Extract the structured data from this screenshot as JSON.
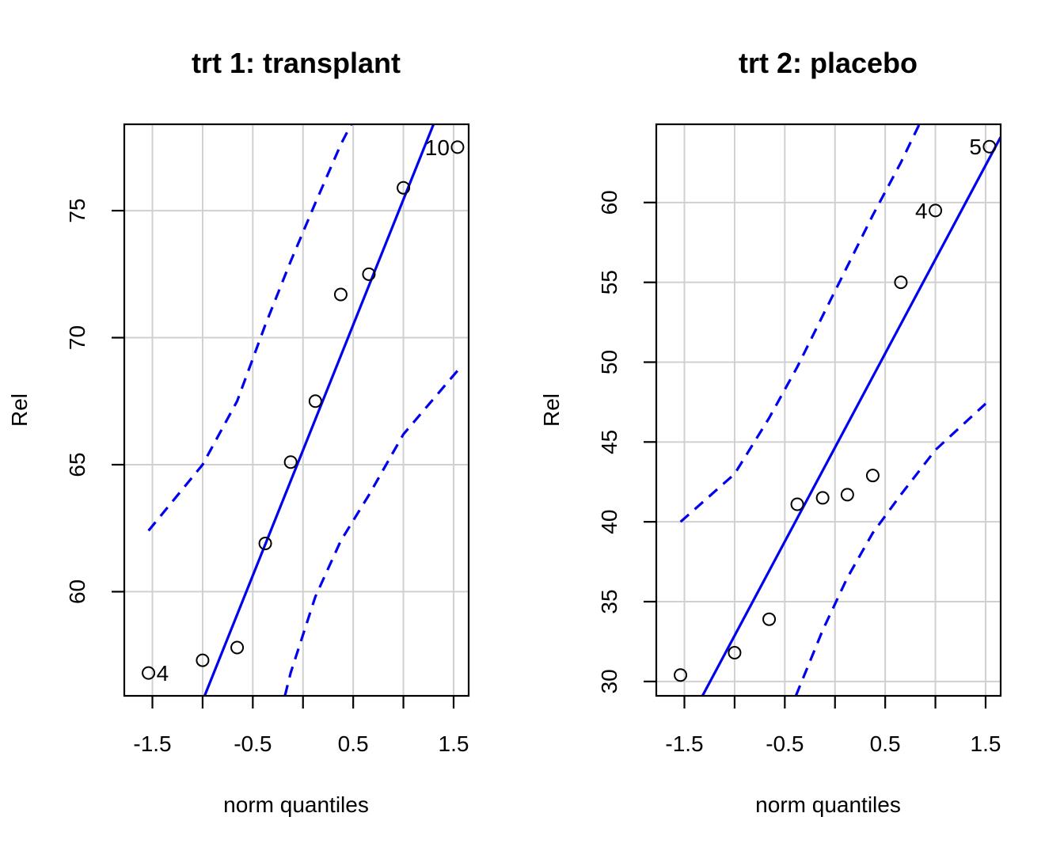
{
  "chart_data": [
    {
      "type": "scatter",
      "title": "trt 1: transplant",
      "xlabel": "norm quantiles",
      "ylabel": "Rel",
      "xlim": [
        -1.78,
        1.65
      ],
      "ylim": [
        55.9,
        78.4
      ],
      "xticks": [
        -1.5,
        -1.0,
        -0.5,
        0.0,
        0.5,
        1.0,
        1.5
      ],
      "xtick_labels": [
        "-1.5",
        "",
        "-0.5",
        "",
        "0.5",
        "",
        "1.5"
      ],
      "yticks": [
        60,
        65,
        70,
        75
      ],
      "ytick_labels": [
        "60",
        "65",
        "70",
        "75"
      ],
      "grid": true,
      "points": {
        "x": [
          -1.539,
          -1.0,
          -0.656,
          -0.376,
          -0.123,
          0.123,
          0.376,
          0.656,
          1.0,
          1.539
        ],
        "y": [
          56.8,
          57.3,
          57.8,
          61.9,
          65.1,
          67.5,
          71.7,
          72.5,
          75.9,
          77.5
        ]
      },
      "point_labels": [
        {
          "index": 0,
          "text": "4",
          "side": "right"
        },
        {
          "index": 9,
          "text": "10",
          "side": "left"
        }
      ],
      "reference_line": {
        "x": [
          -0.98,
          1.3
        ],
        "y": [
          55.9,
          78.4
        ]
      },
      "envelope_upper": {
        "x": [
          -1.539,
          -1.0,
          -0.656,
          -0.376,
          -0.123,
          0.123,
          0.376,
          0.48
        ],
        "y": [
          62.4,
          65.0,
          67.5,
          70.5,
          73.0,
          75.3,
          77.6,
          78.4
        ]
      },
      "envelope_lower": {
        "x": [
          -0.18,
          -0.123,
          0.123,
          0.376,
          0.656,
          1.0,
          1.539
        ],
        "y": [
          55.9,
          56.8,
          59.8,
          62.0,
          63.8,
          66.2,
          68.7
        ]
      },
      "colors": {
        "line": "#0000ee",
        "points": "#000000"
      }
    },
    {
      "type": "scatter",
      "title": "trt 2: placebo",
      "xlabel": "norm quantiles",
      "ylabel": "Rel",
      "xlim": [
        -1.78,
        1.65
      ],
      "ylim": [
        29.1,
        64.9
      ],
      "xticks": [
        -1.5,
        -1.0,
        -0.5,
        0.0,
        0.5,
        1.0,
        1.5
      ],
      "xtick_labels": [
        "-1.5",
        "",
        "-0.5",
        "",
        "0.5",
        "",
        "1.5"
      ],
      "yticks": [
        30,
        35,
        40,
        45,
        50,
        55,
        60
      ],
      "ytick_labels": [
        "30",
        "35",
        "40",
        "45",
        "50",
        "55",
        "60"
      ],
      "grid": true,
      "points": {
        "x": [
          -1.539,
          -1.0,
          -0.656,
          -0.376,
          -0.123,
          0.123,
          0.376,
          0.656,
          1.0,
          1.539
        ],
        "y": [
          30.4,
          31.8,
          33.9,
          41.1,
          41.5,
          41.7,
          42.9,
          55.0,
          59.5,
          63.5
        ]
      },
      "point_labels": [
        {
          "index": 8,
          "text": "4",
          "side": "left"
        },
        {
          "index": 9,
          "text": "5",
          "side": "left"
        }
      ],
      "reference_line": {
        "x": [
          -1.32,
          1.65
        ],
        "y": [
          29.1,
          64.1
        ]
      },
      "envelope_upper": {
        "x": [
          -1.539,
          -1.0,
          -0.656,
          -0.376,
          -0.123,
          0.123,
          0.376,
          0.656,
          0.84
        ],
        "y": [
          40.0,
          43.0,
          46.5,
          49.7,
          52.9,
          56.0,
          59.2,
          62.5,
          64.9
        ]
      },
      "envelope_lower": {
        "x": [
          -0.39,
          -0.123,
          0.123,
          0.376,
          0.656,
          1.0,
          1.5
        ],
        "y": [
          29.1,
          33.2,
          36.5,
          39.3,
          41.7,
          44.5,
          47.4
        ]
      },
      "colors": {
        "line": "#0000ee",
        "points": "#000000"
      }
    }
  ]
}
